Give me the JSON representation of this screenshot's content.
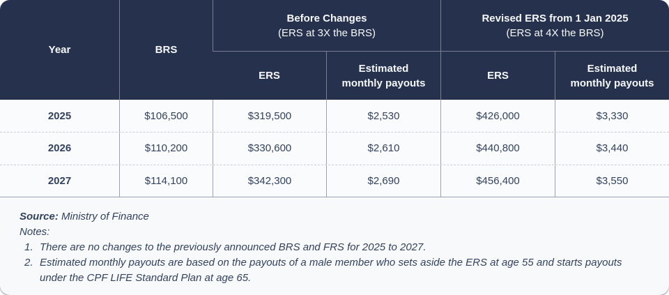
{
  "colors": {
    "header_bg": "#26324d",
    "header_text": "#f5f7fa",
    "body_bg": "#f8f9fb",
    "body_text": "#33425f",
    "grid_line": "#9aa2b0",
    "dashed_line": "#c9cdd6"
  },
  "table": {
    "header": {
      "year_label": "Year",
      "brs_label": "BRS",
      "before_group": {
        "title": "Before Changes",
        "subtitle": "(ERS at 3X the BRS)"
      },
      "revised_group": {
        "title": "Revised ERS from 1 Jan 2025",
        "subtitle": "(ERS at 4X the BRS)"
      },
      "ers_label": "ERS",
      "payouts_label": "Estimated\nmonthly payouts"
    },
    "rows": [
      {
        "year": "2025",
        "brs": "$106,500",
        "ers_before": "$319,500",
        "payout_before": "$2,530",
        "ers_revised": "$426,000",
        "payout_revised": "$3,330"
      },
      {
        "year": "2026",
        "brs": "$110,200",
        "ers_before": "$330,600",
        "payout_before": "$2,610",
        "ers_revised": "$440,800",
        "payout_revised": "$3,440"
      },
      {
        "year": "2027",
        "brs": "$114,100",
        "ers_before": "$342,300",
        "payout_before": "$2,690",
        "ers_revised": "$456,400",
        "payout_revised": "$3,550"
      }
    ]
  },
  "footer": {
    "source_label": "Source:",
    "source_value": " Ministry of Finance",
    "notes_label": "Notes:",
    "notes": [
      {
        "num": "1.",
        "text": "There are no changes to the previously announced BRS and FRS for 2025 to 2027."
      },
      {
        "num": "2.",
        "text": "Estimated monthly payouts are based on the payouts of a male member who sets aside the ERS at age 55 and starts payouts\nunder the CPF LIFE Standard Plan at age 65."
      }
    ]
  }
}
